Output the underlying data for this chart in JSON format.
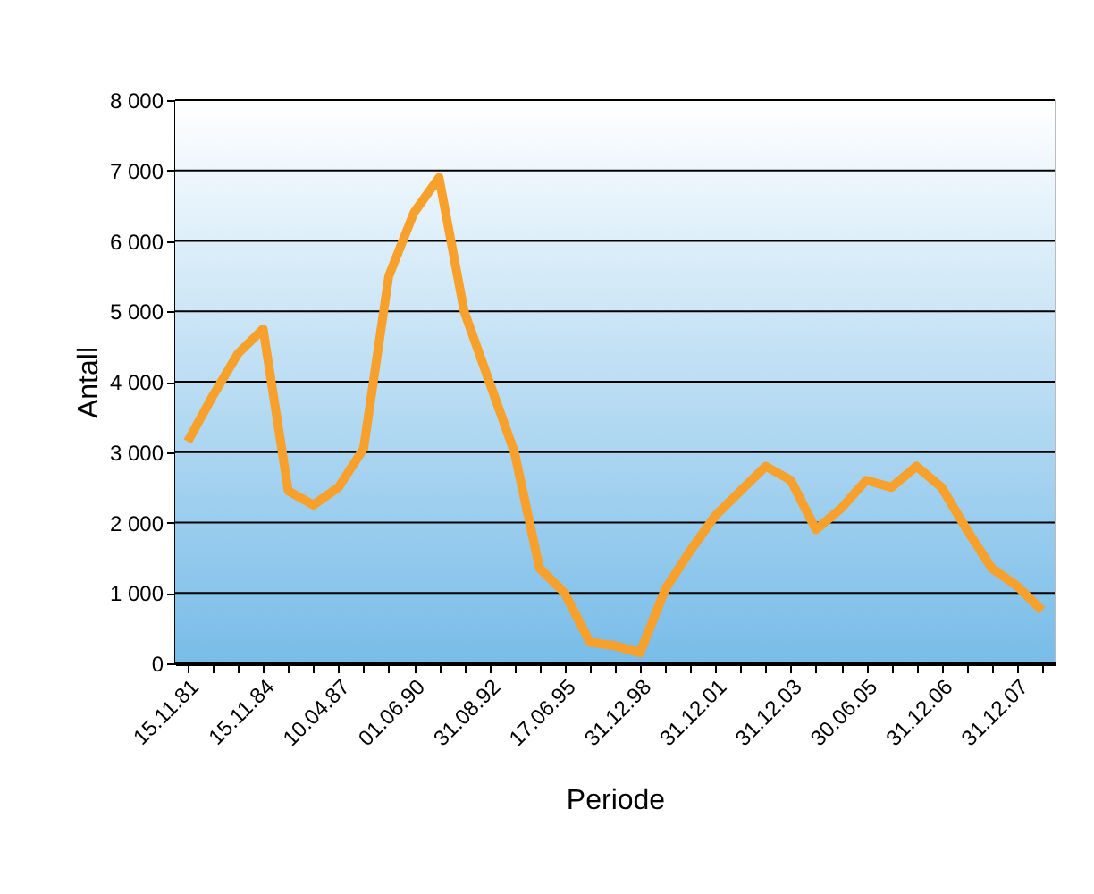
{
  "chart_data": {
    "type": "line",
    "xlabel": "Periode",
    "ylabel": "Antall",
    "categories": [
      "15.11.81",
      null,
      null,
      "15.11.84",
      null,
      null,
      "10.04.87",
      null,
      null,
      "01.06.90",
      null,
      null,
      "31.08.92",
      null,
      null,
      "17.06.95",
      null,
      null,
      "31.12.98",
      null,
      null,
      "31.12.01",
      null,
      null,
      "31.12.03",
      null,
      null,
      "30.06.05",
      null,
      null,
      "31.12.06",
      null,
      null,
      "31.12.07",
      null
    ],
    "series": [
      {
        "color": "#f7a02c",
        "values": [
          3150,
          3800,
          4400,
          4750,
          2450,
          2250,
          2500,
          3050,
          5500,
          6400,
          6900,
          5000,
          4000,
          3000,
          1350,
          1000,
          300,
          250,
          150,
          1050,
          1600,
          2100,
          2450,
          2800,
          2600,
          1900,
          2200,
          2600,
          2500,
          2800,
          2500,
          1900,
          1350,
          1100,
          750
        ]
      }
    ],
    "ylim": [
      0,
      8000
    ],
    "yticks": [
      {
        "value": 0,
        "label": "0"
      },
      {
        "value": 1000,
        "label": "1 000"
      },
      {
        "value": 2000,
        "label": "2 000"
      },
      {
        "value": 3000,
        "label": "3 000"
      },
      {
        "value": 4000,
        "label": "4 000"
      },
      {
        "value": 5000,
        "label": "5 000"
      },
      {
        "value": 6000,
        "label": "6 000"
      },
      {
        "value": 7000,
        "label": "7 000"
      },
      {
        "value": 8000,
        "label": "8 000"
      }
    ],
    "grid": "y",
    "marker": "none",
    "line_style": "solid"
  }
}
